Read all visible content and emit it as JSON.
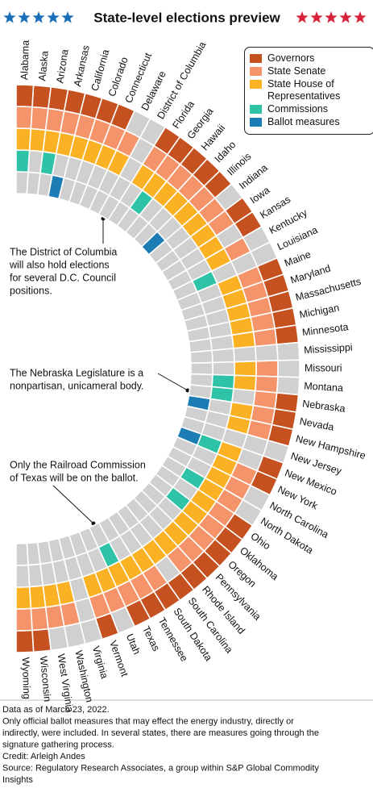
{
  "chart_data": {
    "type": "radial-grid",
    "title": "State-level elections preview",
    "categories": [
      "Alabama",
      "Alaska",
      "Arizona",
      "Arkansas",
      "California",
      "Colorado",
      "Connecticut",
      "Delaware",
      "District of Columbia",
      "Florida",
      "Georgia",
      "Hawaii",
      "Idaho",
      "Illinois",
      "Indiana",
      "Iowa",
      "Kansas",
      "Kentucky",
      "Louisiana",
      "Maine",
      "Maryland",
      "Massachusetts",
      "Michigan",
      "Minnesota",
      "Mississippi",
      "Missouri",
      "Montana",
      "Nebraska",
      "Nevada",
      "New Hampshire",
      "New Jersey",
      "New Mexico",
      "New York",
      "North Carolina",
      "North Dakota",
      "Ohio",
      "Oklahoma",
      "Oregon",
      "Pennsylvania",
      "Rhode Island",
      "South Carolina",
      "South Dakota",
      "Tennessee",
      "Texas",
      "Utah",
      "Vermont",
      "Virginia",
      "Washington",
      "West Virginia",
      "Wisconsin",
      "Wyoming"
    ],
    "series": [
      {
        "name": "Governors",
        "color": "#c4511f",
        "values": [
          1,
          1,
          1,
          1,
          1,
          1,
          1,
          0,
          0,
          1,
          1,
          1,
          1,
          1,
          0,
          1,
          1,
          0,
          0,
          1,
          1,
          1,
          1,
          1,
          0,
          0,
          0,
          1,
          1,
          1,
          0,
          1,
          1,
          0,
          0,
          1,
          1,
          1,
          1,
          1,
          1,
          1,
          1,
          1,
          0,
          1,
          0,
          0,
          0,
          1,
          1
        ]
      },
      {
        "name": "State Senate",
        "color": "#f5946a",
        "values": [
          1,
          1,
          1,
          1,
          1,
          1,
          1,
          1,
          0,
          1,
          1,
          1,
          1,
          1,
          1,
          1,
          0,
          1,
          0,
          1,
          1,
          1,
          1,
          1,
          0,
          1,
          1,
          1,
          1,
          1,
          0,
          0,
          1,
          1,
          1,
          1,
          1,
          1,
          1,
          1,
          0,
          1,
          1,
          1,
          1,
          1,
          0,
          1,
          1,
          1,
          1
        ]
      },
      {
        "name": "State House of Representatives",
        "color": "#fbb124",
        "values": [
          1,
          1,
          1,
          1,
          1,
          1,
          1,
          1,
          0,
          1,
          1,
          1,
          1,
          1,
          1,
          1,
          1,
          1,
          0,
          1,
          1,
          1,
          1,
          1,
          0,
          1,
          1,
          0,
          1,
          1,
          0,
          1,
          1,
          1,
          1,
          1,
          1,
          1,
          1,
          1,
          1,
          1,
          1,
          1,
          1,
          1,
          0,
          1,
          1,
          1,
          1
        ]
      },
      {
        "name": "Commissions",
        "color": "#2ec3a6",
        "values": [
          1,
          0,
          1,
          0,
          0,
          0,
          0,
          0,
          0,
          0,
          1,
          0,
          0,
          0,
          0,
          0,
          0,
          0,
          1,
          0,
          0,
          0,
          0,
          0,
          0,
          0,
          1,
          1,
          0,
          0,
          0,
          1,
          0,
          0,
          1,
          0,
          1,
          0,
          0,
          0,
          0,
          0,
          0,
          1,
          0,
          0,
          0,
          0,
          0,
          0,
          0
        ]
      },
      {
        "name": "Ballot measures",
        "color": "#1b7db3",
        "values": [
          0,
          0,
          0,
          1,
          0,
          0,
          0,
          0,
          0,
          0,
          0,
          0,
          0,
          1,
          0,
          0,
          0,
          0,
          0,
          0,
          0,
          0,
          0,
          0,
          0,
          0,
          0,
          0,
          1,
          0,
          0,
          1,
          0,
          0,
          0,
          0,
          0,
          0,
          0,
          0,
          0,
          0,
          0,
          0,
          0,
          0,
          0,
          0,
          0,
          0,
          0
        ]
      }
    ],
    "empty_color": "#d0d0d0",
    "annotations": [
      [
        "The District of Columbia",
        "will also hold elections",
        "for several D.C. Council",
        "positions."
      ],
      [
        "The Nebraska Legislature is a",
        "nonpartisan, unicameral body."
      ],
      [
        "Only the Railroad Commission",
        "of Texas will be on the ballot."
      ]
    ],
    "notes": [
      "Data as of March 23, 2022.",
      "Only official ballot measures that may effect the energy industry, directly or",
      "indirectly, were included. In several states, there are measures going through the",
      "signature gathering process.",
      "Credit: Arleigh Andes",
      "Source: Regulatory Research Associates, a group within S&P Global Commodity",
      "Insights"
    ]
  }
}
